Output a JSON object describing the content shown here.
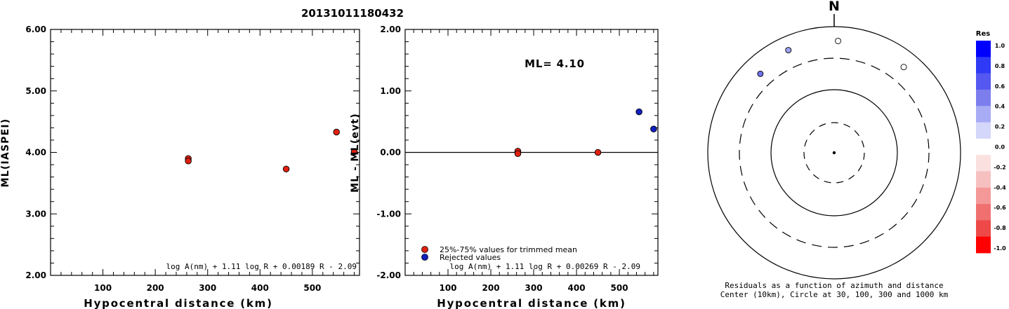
{
  "figure_title": "20131011180432",
  "chart_data": [
    {
      "type": "scatter",
      "ylabel": "ML(IASPEI)",
      "xlabel": "Hypocentral distance (km)",
      "xlim": [
        0,
        590
      ],
      "ylim": [
        2.0,
        6.0
      ],
      "x_ticks": [
        "100",
        "200",
        "300",
        "400",
        "500"
      ],
      "x_tick_values": [
        100,
        200,
        300,
        400,
        500
      ],
      "y_ticks": [
        "2.00",
        "3.00",
        "4.00",
        "5.00",
        "6.00"
      ],
      "y_tick_values": [
        2,
        3,
        4,
        5,
        6
      ],
      "formula": "log A(nm) + 1.11 log R + 0.00189 R - 2.09",
      "points": [
        {
          "x": 263,
          "y": 3.9,
          "color": "#e02010"
        },
        {
          "x": 263,
          "y": 3.86,
          "color": "#e02010"
        },
        {
          "x": 450,
          "y": 3.73,
          "color": "#e02010"
        },
        {
          "x": 546,
          "y": 4.33,
          "color": "#e02010"
        },
        {
          "x": 580,
          "y": 4.01,
          "color": "#e02010"
        }
      ]
    },
    {
      "type": "scatter",
      "ylabel": "ML - ML(evt)",
      "xlabel": "Hypocentral distance (km)",
      "xlim": [
        0,
        590
      ],
      "ylim": [
        -2.0,
        2.0
      ],
      "x_ticks": [
        "100",
        "200",
        "300",
        "400",
        "500"
      ],
      "x_tick_values": [
        100,
        200,
        300,
        400,
        500
      ],
      "y_ticks": [
        "-2.00",
        "-1.00",
        "0.00",
        "1.00",
        "2.00"
      ],
      "y_tick_values": [
        -2,
        -1,
        0,
        1,
        2
      ],
      "zero_line": 0,
      "ml_annotation": "ML= 4.10",
      "formula": "log A(nm) + 1.11 log R + 0.00269 R - 2.09",
      "legend": [
        {
          "label": "25%-75% values for trimmed mean",
          "color": "#e02010"
        },
        {
          "label": "Rejected values",
          "color": "#1020c0"
        }
      ],
      "points": [
        {
          "x": 263,
          "y": 0.02,
          "color": "#e02010"
        },
        {
          "x": 263,
          "y": -0.02,
          "color": "#e02010"
        },
        {
          "x": 450,
          "y": 0.0,
          "color": "#e02010"
        },
        {
          "x": 546,
          "y": 0.66,
          "color": "#1020c0"
        },
        {
          "x": 580,
          "y": 0.38,
          "color": "#1020c0"
        }
      ]
    },
    {
      "type": "scatter",
      "subtype": "polar",
      "north_label": "N",
      "caption_line1": "Residuals as a function of azimuth and distance",
      "caption_line2": "Center (10km), Circle at 30, 100, 300 and 1000 km",
      "points": [
        {
          "azimuth_deg": 2,
          "distance_km": 580,
          "residual": 0.0,
          "fill": "#ffffff"
        },
        {
          "azimuth_deg": 39,
          "distance_km": 546,
          "residual": 0.0,
          "fill": "#ffffff"
        },
        {
          "azimuth_deg": -24,
          "distance_km": 590,
          "residual": 0.4,
          "fill": "#9ba1f0"
        },
        {
          "azimuth_deg": -43,
          "distance_km": 500,
          "residual": 0.6,
          "fill": "#6f70ea"
        }
      ],
      "colorbar": {
        "title": "Res",
        "tick_labels": [
          "1.0",
          "0.8",
          "0.6",
          "0.4",
          "0.2",
          "0.0",
          "-0.2",
          "-0.4",
          "-0.6",
          "-0.8",
          "-1.0"
        ],
        "colors": [
          "#0000ff",
          "#2e3af5",
          "#5558f0",
          "#7c7eee",
          "#a8acf4",
          "#d4d6fa",
          "#ffffff",
          "#fbe0e0",
          "#f7c0c0",
          "#f49898",
          "#f07070",
          "#ee4848",
          "#ff0000"
        ]
      }
    }
  ]
}
